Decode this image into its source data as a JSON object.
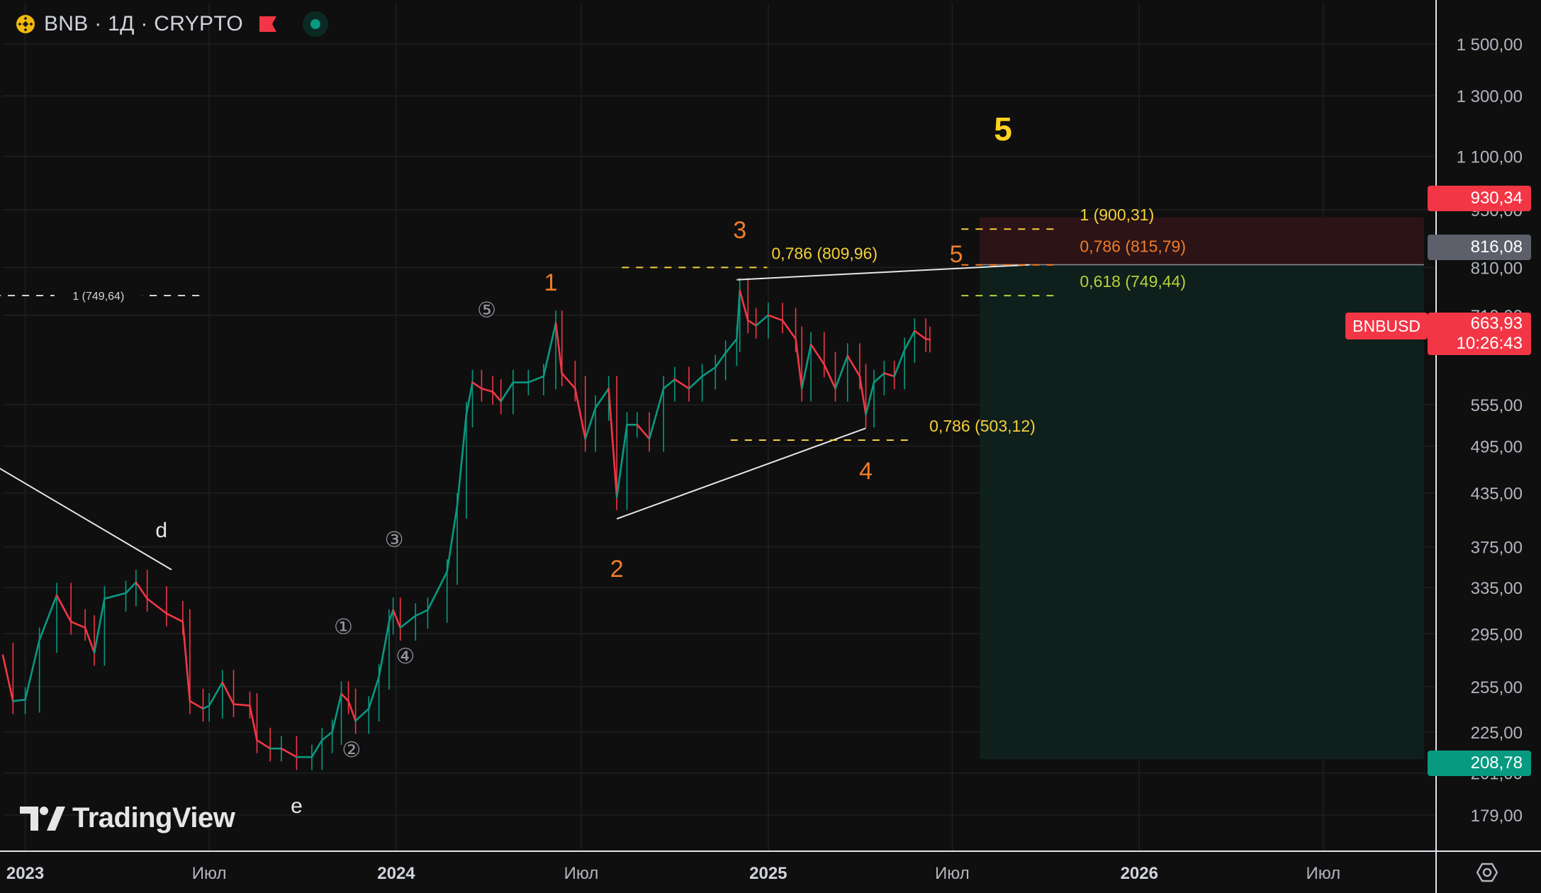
{
  "header": {
    "symbol_text": "BNB · 1Д · CRYPTO"
  },
  "price_axis": {
    "ticks": [
      "1 500,00",
      "1 300,00",
      "1 100,00",
      "950,00",
      "810,00",
      "710,00",
      "555,00",
      "495,00",
      "435,00",
      "375,00",
      "335,00",
      "295,00",
      "255,00",
      "225,00",
      "201,00",
      "179,00"
    ]
  },
  "time_axis": {
    "labels": [
      {
        "date": "2023-01-01",
        "text": "2023",
        "bold": true
      },
      {
        "date": "2023-07-01",
        "text": "Июл",
        "bold": false
      },
      {
        "date": "2024-01-01",
        "text": "2024",
        "bold": true
      },
      {
        "date": "2024-07-01",
        "text": "Июл",
        "bold": false
      },
      {
        "date": "2025-01-01",
        "text": "2025",
        "bold": true
      },
      {
        "date": "2025-07-01",
        "text": "Июл",
        "bold": false
      },
      {
        "date": "2026-01-01",
        "text": "2026",
        "bold": true
      },
      {
        "date": "2026-07-01",
        "text": "Июл",
        "bold": false
      }
    ]
  },
  "badges": {
    "target": "930,34",
    "entry": "816,08",
    "symbol": "BNBUSD",
    "last_price": "663,93",
    "countdown": "10:26:43",
    "stop": "208,78"
  },
  "colors": {
    "background": "#0f0f0f",
    "grid": "#1f1f1f",
    "up": "#089981",
    "down": "#f23645",
    "wave_orange": "#f07d2a",
    "fib_yellow": "#f5d03a",
    "fib_green": "#b7d13a",
    "target_zone": "#2e1416",
    "stop_zone": "#0f211d",
    "entry_badge": "#5d606b",
    "target_badge": "#f23645",
    "stop_badge": "#089981"
  },
  "annotations": {
    "wave_labels": [
      {
        "text": "1",
        "date": "2024-06-01",
        "price": 760
      },
      {
        "text": "2",
        "date": "2024-08-05",
        "price": 345
      },
      {
        "text": "3",
        "date": "2024-12-04",
        "price": 878
      },
      {
        "text": "4",
        "date": "2025-04-07",
        "price": 452
      },
      {
        "text": "5",
        "date": "2025-07-05",
        "price": 822
      },
      {
        "text": "5",
        "date": "2025-08-20",
        "price": 1150
      }
    ],
    "sub_wave_labels": [
      {
        "text": "①",
        "date": "2023-11-10",
        "price": 295
      },
      {
        "text": "②",
        "date": "2023-11-18",
        "price": 210
      },
      {
        "text": "③",
        "date": "2023-12-30",
        "price": 375
      },
      {
        "text": "④",
        "date": "2024-01-10",
        "price": 272
      },
      {
        "text": "⑤",
        "date": "2024-03-30",
        "price": 706
      }
    ],
    "corrective_labels": [
      {
        "text": "d",
        "date": "2023-05-15",
        "price": 385
      },
      {
        "text": "e",
        "date": "2023-09-25",
        "price": 180
      }
    ],
    "fib_levels": [
      {
        "label": "1 (749,64)",
        "price": 749.64,
        "start": "2022-12-01",
        "end": "2023-06-25",
        "color": "#d1d4dc",
        "style": "center"
      },
      {
        "label": "0,786 (809,96)",
        "price": 809.96,
        "start": "2024-08-10",
        "end": "2024-12-31",
        "color": "#f5d03a",
        "style": "right"
      },
      {
        "label": "0,786 (503,12)",
        "price": 503.12,
        "start": "2024-11-25",
        "end": "2025-05-20",
        "color": "#f5d03a",
        "style": "after"
      },
      {
        "label": "1 (900,31)",
        "price": 900.31,
        "start": "2025-07-10",
        "end": "2025-10-15",
        "color": "#f5d03a",
        "style": "after"
      },
      {
        "label": "0,786 (815,79)",
        "price": 815.79,
        "start": "2025-07-10",
        "end": "2025-10-15",
        "color": "#f07d2a",
        "style": "after"
      },
      {
        "label": "0,618 (749,44)",
        "price": 749.44,
        "start": "2025-07-10",
        "end": "2025-10-15",
        "color": "#b7d13a",
        "style": "after"
      }
    ]
  },
  "chart_data": {
    "type": "candlestick",
    "title": "BNB · 1Д · CRYPTO",
    "y_scale": "log",
    "ylim": [
      162,
      1680
    ],
    "xlim": [
      "2022-12-10",
      "2026-10-20"
    ],
    "grid": true,
    "series": [
      {
        "name": "BNBUSD",
        "close_points": [
          [
            "2022-12-10",
            278
          ],
          [
            "2022-12-20",
            245
          ],
          [
            "2023-01-01",
            246
          ],
          [
            "2023-01-15",
            290
          ],
          [
            "2023-02-01",
            328
          ],
          [
            "2023-02-15",
            305
          ],
          [
            "2023-03-01",
            300
          ],
          [
            "2023-03-10",
            280
          ],
          [
            "2023-03-20",
            325
          ],
          [
            "2023-04-10",
            330
          ],
          [
            "2023-04-20",
            340
          ],
          [
            "2023-05-01",
            325
          ],
          [
            "2023-05-20",
            312
          ],
          [
            "2023-06-05",
            305
          ],
          [
            "2023-06-12",
            245
          ],
          [
            "2023-06-25",
            240
          ],
          [
            "2023-07-01",
            242
          ],
          [
            "2023-07-14",
            258
          ],
          [
            "2023-07-25",
            243
          ],
          [
            "2023-08-10",
            242
          ],
          [
            "2023-08-17",
            220
          ],
          [
            "2023-08-30",
            215
          ],
          [
            "2023-09-10",
            215
          ],
          [
            "2023-09-25",
            210
          ],
          [
            "2023-10-10",
            210
          ],
          [
            "2023-10-20",
            220
          ],
          [
            "2023-10-30",
            225
          ],
          [
            "2023-11-08",
            250
          ],
          [
            "2023-11-15",
            245
          ],
          [
            "2023-11-22",
            232
          ],
          [
            "2023-12-05",
            240
          ],
          [
            "2023-12-15",
            262
          ],
          [
            "2023-12-25",
            305
          ],
          [
            "2023-12-29",
            315
          ],
          [
            "2024-01-05",
            300
          ],
          [
            "2024-01-20",
            310
          ],
          [
            "2024-02-01",
            315
          ],
          [
            "2024-02-20",
            350
          ],
          [
            "2024-03-01",
            420
          ],
          [
            "2024-03-10",
            540
          ],
          [
            "2024-03-16",
            590
          ],
          [
            "2024-03-25",
            580
          ],
          [
            "2024-04-05",
            575
          ],
          [
            "2024-04-13",
            560
          ],
          [
            "2024-04-25",
            590
          ],
          [
            "2024-05-10",
            590
          ],
          [
            "2024-05-25",
            600
          ],
          [
            "2024-06-06",
            695
          ],
          [
            "2024-06-12",
            605
          ],
          [
            "2024-06-25",
            580
          ],
          [
            "2024-07-05",
            505
          ],
          [
            "2024-07-15",
            550
          ],
          [
            "2024-07-28",
            580
          ],
          [
            "2024-08-05",
            430
          ],
          [
            "2024-08-15",
            525
          ],
          [
            "2024-08-25",
            525
          ],
          [
            "2024-09-06",
            505
          ],
          [
            "2024-09-20",
            580
          ],
          [
            "2024-10-01",
            595
          ],
          [
            "2024-10-15",
            580
          ],
          [
            "2024-10-28",
            600
          ],
          [
            "2024-11-10",
            615
          ],
          [
            "2024-11-20",
            640
          ],
          [
            "2024-12-01",
            665
          ],
          [
            "2024-12-04",
            760
          ],
          [
            "2024-12-12",
            700
          ],
          [
            "2024-12-20",
            690
          ],
          [
            "2025-01-01",
            710
          ],
          [
            "2025-01-15",
            700
          ],
          [
            "2025-01-28",
            665
          ],
          [
            "2025-02-03",
            580
          ],
          [
            "2025-02-12",
            655
          ],
          [
            "2025-02-25",
            620
          ],
          [
            "2025-03-08",
            580
          ],
          [
            "2025-03-20",
            635
          ],
          [
            "2025-04-01",
            600
          ],
          [
            "2025-04-07",
            540
          ],
          [
            "2025-04-15",
            590
          ],
          [
            "2025-04-25",
            605
          ],
          [
            "2025-05-05",
            600
          ],
          [
            "2025-05-15",
            645
          ],
          [
            "2025-05-25",
            680
          ],
          [
            "2025-06-05",
            665
          ],
          [
            "2025-06-09",
            663.93
          ]
        ]
      }
    ],
    "last_price": 663.93,
    "position": {
      "entry": 816.08,
      "target": 930.34,
      "stop": 208.78,
      "start": "2025-07-28",
      "end": "2026-10-08"
    },
    "trendlines": [
      {
        "from": [
          "2022-12-01",
          470
        ],
        "to": [
          "2023-05-25",
          352
        ]
      },
      {
        "from": [
          "2024-08-05",
          405
        ],
        "to": [
          "2025-04-07",
          520
        ]
      },
      {
        "from": [
          "2024-12-01",
          783
        ],
        "to": [
          "2025-09-15",
          816
        ]
      }
    ]
  }
}
